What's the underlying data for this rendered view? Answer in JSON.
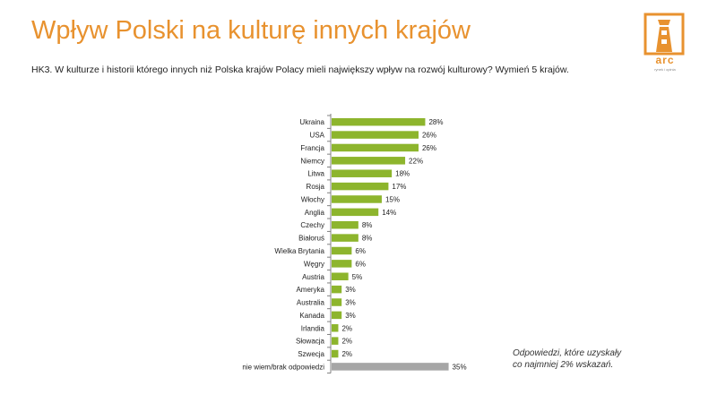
{
  "header": {
    "title": "Wpływ Polski na kulturę innych krajów",
    "question": "HK3. W kulturze i historii którego innych niż Polska krajów Polacy mieli największy wpływ na rozwój kulturowy? Wymień 5 krajów."
  },
  "logo": {
    "name": "arc",
    "tagline": "rynek i opinia",
    "icon": "lighthouse-icon",
    "color": "#e8922f"
  },
  "footnote": {
    "line1": "Odpowiedzi, które uzyskały",
    "line2": "co najmniej 2% wskazań."
  },
  "colors": {
    "title": "#e8922f",
    "bar": "#8db52d",
    "bar_other": "#a6a6a6",
    "axis": "#808080"
  },
  "chart_data": {
    "type": "bar",
    "orientation": "horizontal",
    "categories": [
      "Ukraina",
      "USA",
      "Francja",
      "Niemcy",
      "Litwa",
      "Rosja",
      "Włochy",
      "Anglia",
      "Czechy",
      "Białoruś",
      "Wielka Brytania",
      "Węgry",
      "Austria",
      "Ameryka",
      "Australia",
      "Kanada",
      "Irlandia",
      "Słowacja",
      "Szwecja",
      "nie wiem/brak odpowiedzi"
    ],
    "values": [
      28,
      26,
      26,
      22,
      18,
      17,
      15,
      14,
      8,
      8,
      6,
      6,
      5,
      3,
      3,
      3,
      2,
      2,
      2,
      35
    ],
    "value_suffix": "%",
    "highlight_last": true,
    "xlim": [
      0,
      100
    ]
  }
}
